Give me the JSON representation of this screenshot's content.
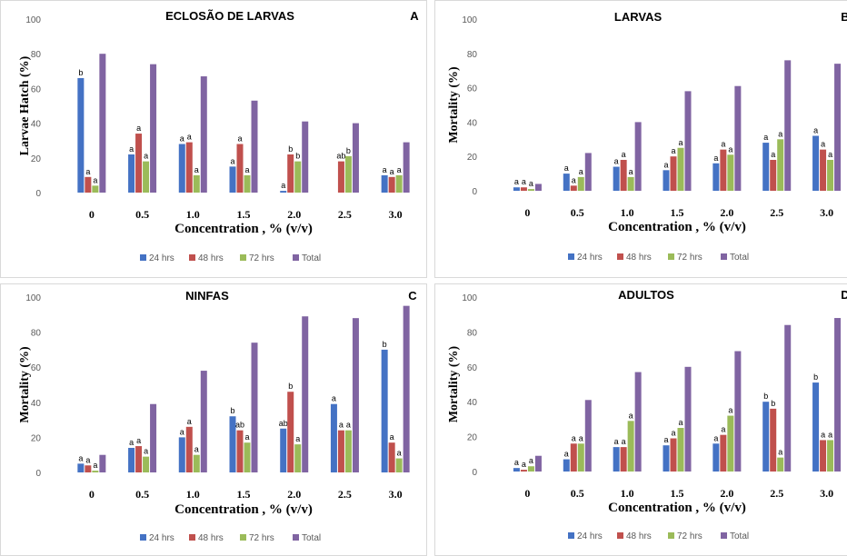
{
  "x_axis_label": "Concentration , % (v/v)",
  "legend": [
    "24 hrs",
    "48 hrs",
    "72 hrs",
    "Total"
  ],
  "series_colors": [
    "#4472c4",
    "#c0504d",
    "#9bbb59",
    "#8064a2"
  ],
  "chart_data": [
    {
      "type": "bar",
      "title": "ECLOSÃO DE LARVAS",
      "panel_letter": "A",
      "xlabel": "Concentration , % (v/v)",
      "ylabel": "Larvae  Hatch (%)",
      "ylim": [
        0,
        100
      ],
      "yticks": [
        0,
        20,
        40,
        60,
        80,
        100
      ],
      "grid": false,
      "legend_position": "bottom",
      "categories": [
        "0",
        "0.5",
        "1.0",
        "1.5",
        "2.0",
        "2.5",
        "3.0"
      ],
      "series": [
        {
          "name": "24 hrs",
          "values": [
            66,
            22,
            28,
            15,
            1,
            0,
            10
          ],
          "labels": [
            "b",
            "a",
            "a",
            "a",
            "a",
            "",
            "a"
          ]
        },
        {
          "name": "48 hrs",
          "values": [
            9,
            34,
            29,
            28,
            22,
            18,
            9
          ],
          "labels": [
            "a",
            "a",
            "a",
            "a",
            "b",
            "ab",
            "a"
          ]
        },
        {
          "name": "72 hrs",
          "values": [
            4,
            18,
            10,
            10,
            18,
            21,
            10
          ],
          "labels": [
            "a",
            "a",
            "a",
            "a",
            "b",
            "b",
            "a"
          ]
        },
        {
          "name": "Total",
          "values": [
            80,
            74,
            67,
            53,
            41,
            40,
            29
          ],
          "labels": [
            "",
            "",
            "",
            "",
            "",
            "",
            ""
          ]
        }
      ]
    },
    {
      "type": "bar",
      "title": "LARVAS",
      "panel_letter": "B",
      "xlabel": "Concentration , % (v/v)",
      "ylabel": "Mortality (%)",
      "ylim": [
        0,
        100
      ],
      "yticks": [
        0,
        20,
        40,
        60,
        80,
        100
      ],
      "grid": false,
      "legend_position": "bottom",
      "categories": [
        "0",
        "0.5",
        "1.0",
        "1.5",
        "2.0",
        "2.5",
        "3.0"
      ],
      "series": [
        {
          "name": "24 hrs",
          "values": [
            2,
            10,
            14,
            12,
            16,
            28,
            32
          ],
          "labels": [
            "a",
            "a",
            "a",
            "a",
            "a",
            "a",
            "a"
          ]
        },
        {
          "name": "48 hrs",
          "values": [
            2,
            3,
            18,
            20,
            24,
            18,
            24
          ],
          "labels": [
            "a",
            "a",
            "a",
            "a",
            "a",
            "a",
            "a"
          ]
        },
        {
          "name": "72 hrs",
          "values": [
            1,
            8,
            8,
            25,
            21,
            30,
            18
          ],
          "labels": [
            "a",
            "a",
            "a",
            "a",
            "a",
            "a",
            "a"
          ]
        },
        {
          "name": "Total",
          "values": [
            4,
            22,
            40,
            58,
            61,
            76,
            74
          ],
          "labels": [
            "",
            "",
            "",
            "",
            "",
            "",
            ""
          ]
        }
      ]
    },
    {
      "type": "bar",
      "title": "NINFAS",
      "panel_letter": "C",
      "xlabel": "Concentration , % (v/v)",
      "ylabel": "Mortality (%)",
      "ylim": [
        0,
        100
      ],
      "yticks": [
        0,
        20,
        40,
        60,
        80,
        100
      ],
      "grid": false,
      "legend_position": "bottom",
      "categories": [
        "0",
        "0.5",
        "1.0",
        "1.5",
        "2.0",
        "2.5",
        "3.0"
      ],
      "series": [
        {
          "name": "24 hrs",
          "values": [
            5,
            14,
            20,
            32,
            25,
            39,
            70
          ],
          "labels": [
            "a",
            "a",
            "a",
            "b",
            "ab",
            "a",
            "b"
          ]
        },
        {
          "name": "48 hrs",
          "values": [
            4,
            15,
            26,
            24,
            46,
            24,
            17
          ],
          "labels": [
            "a",
            "a",
            "a",
            "ab",
            "b",
            "a",
            "a"
          ]
        },
        {
          "name": "72 hrs",
          "values": [
            1,
            9,
            10,
            17,
            16,
            24,
            8
          ],
          "labels": [
            "a",
            "a",
            "a",
            "a",
            "a",
            "a",
            "a"
          ]
        },
        {
          "name": "Total",
          "values": [
            10,
            39,
            58,
            74,
            89,
            88,
            95
          ],
          "labels": [
            "",
            "",
            "",
            "",
            "",
            "",
            ""
          ]
        }
      ]
    },
    {
      "type": "bar",
      "title": "ADULTOS",
      "panel_letter": "D",
      "xlabel": "Concentration , % (v/v)",
      "ylabel": "Mortality (%)",
      "ylim": [
        0,
        100
      ],
      "yticks": [
        0,
        20,
        40,
        60,
        80,
        100
      ],
      "grid": false,
      "legend_position": "bottom",
      "categories": [
        "0",
        "0.5",
        "1.0",
        "1.5",
        "2.0",
        "2.5",
        "3.0"
      ],
      "series": [
        {
          "name": "24 hrs",
          "values": [
            2,
            7,
            14,
            15,
            16,
            40,
            51
          ],
          "labels": [
            "a",
            "a",
            "a",
            "a",
            "a",
            "b",
            "b"
          ]
        },
        {
          "name": "48 hrs",
          "values": [
            1,
            16,
            14,
            19,
            21,
            36,
            18
          ],
          "labels": [
            "a",
            "a",
            "a",
            "a",
            "a",
            "b",
            "a"
          ]
        },
        {
          "name": "72 hrs",
          "values": [
            3,
            16,
            29,
            25,
            32,
            8,
            18
          ],
          "labels": [
            "a",
            "a",
            "a",
            "a",
            "a",
            "a",
            "a"
          ]
        },
        {
          "name": "Total",
          "values": [
            9,
            41,
            57,
            60,
            69,
            84,
            88
          ],
          "labels": [
            "",
            "",
            "",
            "",
            "",
            "",
            ""
          ]
        }
      ]
    }
  ]
}
